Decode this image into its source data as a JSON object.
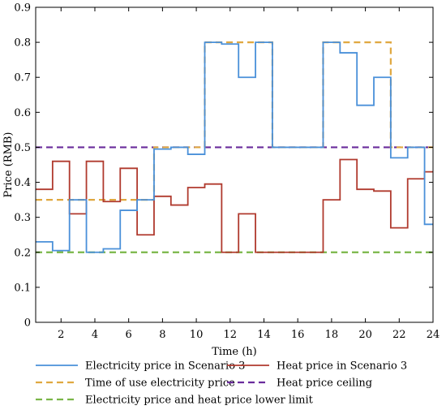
{
  "chart_data": {
    "type": "line",
    "title": "",
    "xlabel": "Time (h)",
    "ylabel": "Price (RMB)",
    "xlim": [
      0.5,
      24
    ],
    "ylim": [
      0,
      0.9
    ],
    "xticks": [
      2,
      4,
      6,
      8,
      10,
      12,
      14,
      16,
      18,
      20,
      22,
      24
    ],
    "yticks": [
      0,
      0.1,
      0.2,
      0.3,
      0.4,
      0.5,
      0.6,
      0.7,
      0.8,
      0.9
    ],
    "ytick_labels": [
      "0",
      "0.1",
      "0.2",
      "0.3",
      "0.4",
      "0.5",
      "0.6",
      "0.7",
      "0.8",
      "0.9"
    ],
    "grid": false,
    "legend_position": "bottom",
    "series": [
      {
        "name": "Electricity price in Scenario 3",
        "color": "#4a90d9",
        "style": "solid-step",
        "values": [
          0.23,
          0.205,
          0.35,
          0.2,
          0.21,
          0.32,
          0.35,
          0.495,
          0.5,
          0.48,
          0.8,
          0.795,
          0.7,
          0.8,
          0.5,
          0.5,
          0.5,
          0.8,
          0.77,
          0.62,
          0.7,
          0.47,
          0.5,
          0.28
        ]
      },
      {
        "name": "Heat price in Scenario 3",
        "color": "#b03a2e",
        "style": "solid-step",
        "values": [
          0.38,
          0.46,
          0.31,
          0.46,
          0.345,
          0.44,
          0.25,
          0.36,
          0.335,
          0.385,
          0.395,
          0.2,
          0.31,
          0.2,
          0.2,
          0.2,
          0.2,
          0.35,
          0.465,
          0.38,
          0.375,
          0.27,
          0.41,
          0.43
        ]
      },
      {
        "name": "Time of use electricity price",
        "color": "#e0a840",
        "style": "dashed-step",
        "values": [
          0.35,
          0.35,
          0.35,
          0.35,
          0.35,
          0.35,
          0.35,
          0.5,
          0.5,
          0.5,
          0.8,
          0.8,
          0.8,
          0.8,
          0.5,
          0.5,
          0.5,
          0.8,
          0.8,
          0.8,
          0.8,
          0.5,
          0.5,
          0.5
        ]
      },
      {
        "name": "Heat price ceiling",
        "color": "#6a2c9c",
        "style": "dashed",
        "values": [
          0.5,
          0.5,
          0.5,
          0.5,
          0.5,
          0.5,
          0.5,
          0.5,
          0.5,
          0.5,
          0.5,
          0.5,
          0.5,
          0.5,
          0.5,
          0.5,
          0.5,
          0.5,
          0.5,
          0.5,
          0.5,
          0.5,
          0.5,
          0.5
        ]
      },
      {
        "name": "Electricity price and heat price lower limit",
        "color": "#7ab648",
        "style": "dashed",
        "values": [
          0.2,
          0.2,
          0.2,
          0.2,
          0.2,
          0.2,
          0.2,
          0.2,
          0.2,
          0.2,
          0.2,
          0.2,
          0.2,
          0.2,
          0.2,
          0.2,
          0.2,
          0.2,
          0.2,
          0.2,
          0.2,
          0.2,
          0.2,
          0.2
        ]
      }
    ]
  }
}
